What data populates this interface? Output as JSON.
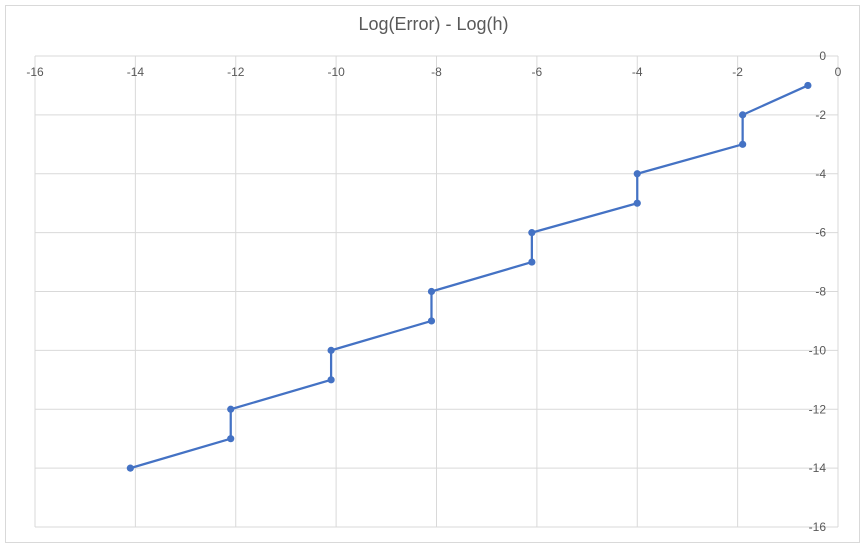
{
  "chart_data": {
    "type": "line",
    "title": "Log(Error) - Log(h)",
    "xlabel": "",
    "ylabel": "",
    "xlim": [
      -16,
      0
    ],
    "ylim": [
      -16,
      0
    ],
    "x_ticks": [
      -16,
      -14,
      -12,
      -10,
      -8,
      -6,
      -4,
      -2,
      0
    ],
    "y_ticks": [
      0,
      -2,
      -4,
      -6,
      -8,
      -10,
      -12,
      -14,
      -16
    ],
    "x_tick_labels": [
      "-16",
      "-14",
      "-12",
      "-10",
      "-8",
      "-6",
      "-4",
      "-2",
      "0"
    ],
    "y_tick_labels": [
      "0",
      "-2",
      "-4",
      "-6",
      "-8",
      "-10",
      "-12",
      "-14",
      "-16"
    ],
    "grid": true,
    "legend": "none",
    "series_color": "#4472c4",
    "series": [
      {
        "points": [
          {
            "x": -0.6,
            "y": -1
          },
          {
            "x": -1.9,
            "y": -2
          },
          {
            "x": -1.9,
            "y": -3
          },
          {
            "x": -4.0,
            "y": -4
          },
          {
            "x": -4.0,
            "y": -5
          },
          {
            "x": -6.1,
            "y": -6
          },
          {
            "x": -6.1,
            "y": -7
          },
          {
            "x": -8.1,
            "y": -8
          },
          {
            "x": -8.1,
            "y": -9
          },
          {
            "x": -10.1,
            "y": -10
          },
          {
            "x": -10.1,
            "y": -11
          },
          {
            "x": -12.1,
            "y": -12
          },
          {
            "x": -12.1,
            "y": -13
          },
          {
            "x": -14.1,
            "y": -14
          }
        ]
      }
    ]
  }
}
